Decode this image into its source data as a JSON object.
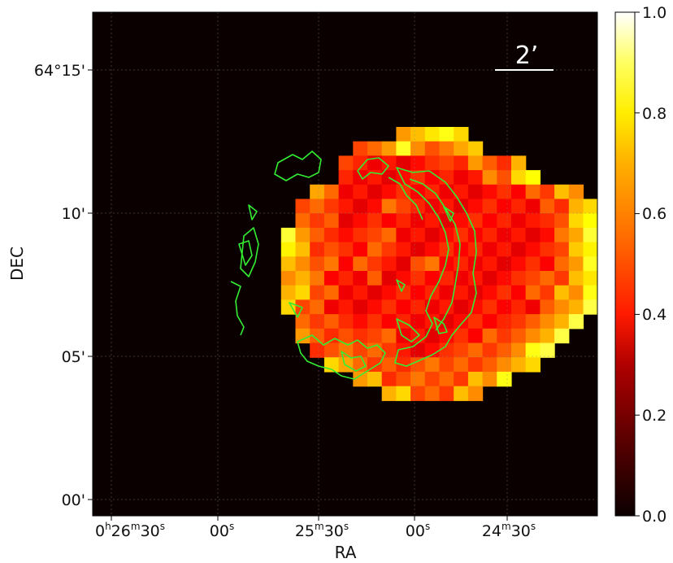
{
  "chart_data": {
    "type": "heatmap",
    "xlabel": "RA",
    "ylabel": "DEC",
    "x_ticks": [
      {
        "main": "0",
        "sup1": "h",
        "mid": "26",
        "sup2": "m",
        "end": "30",
        "sup3": "s"
      },
      {
        "main": "",
        "sup1": "",
        "mid": "",
        "sup2": "",
        "end": "00",
        "sup3": "s"
      },
      {
        "main": "",
        "sup1": "",
        "mid": "25",
        "sup2": "m",
        "end": "30",
        "sup3": "s"
      },
      {
        "main": "",
        "sup1": "",
        "mid": "",
        "sup2": "",
        "end": "00",
        "sup3": "s"
      },
      {
        "main": "",
        "sup1": "",
        "mid": "24",
        "sup2": "m",
        "end": "30",
        "sup3": "s"
      }
    ],
    "y_ticks": [
      "64°15'",
      "10'",
      "05'",
      "00'"
    ],
    "scale_bar_label": "2’",
    "colorbar": {
      "range": [
        0.0,
        1.0
      ],
      "ticks": [
        "0.0",
        "0.2",
        "0.4",
        "0.6",
        "0.8",
        "1.0"
      ],
      "colormap": "hot"
    },
    "background_color": "#0b0000",
    "contour_color": "#33ee33",
    "grid": "dotted",
    "map_rows": [
      "............ccddc.........",
      ".........bbcdcbbcce.......",
      "........baaaaaabacbbc.....",
      "........aaaaaaaaaacbcd....",
      "......cbaaaaaaaaaaaaabbcc.",
      ".....bbbaaabbaaaaaaaaabbcc",
      ".....bbbaaaaaaaaaaaaaabbcd",
      "....dcbbaabbaaaaaaaaaaabcd",
      "....dcbbaabbaaaaaaaaaaabcd",
      "....ccbbabbaabbaaaaaaaabcd",
      "....ccbaaabaaaaaaaaaabbbcd",
      "....ccbbaaaaaaaaaaaaabbccd",
      "....cbbaaaaaaaaaaaaaaabccd",
      ".....bbbbaaaaaaaaaaabbccd.",
      ".....cbbbabbaaaaaabbbccd..",
      "......bbbbbbaaaabbbbcdd...",
      ".......ccbbbbbbbbbbccc....",
      ".........ccbbbbbbccd......",
      "...........ccbbbcc........"
    ],
    "value_levels": {
      ".": 0.0,
      "a": 0.38,
      "b": 0.48,
      "c": 0.62,
      "d": 0.75
    }
  }
}
